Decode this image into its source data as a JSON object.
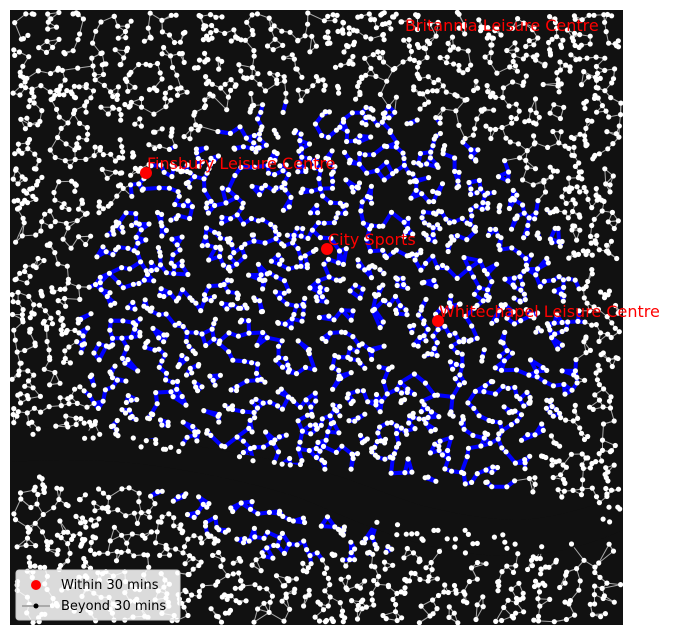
{
  "colors": {
    "background": "#111111",
    "street_edge": "#aaaaaa",
    "reachable_edge": "#0000ff",
    "node": "#ffffff",
    "poi_marker": "#ff0000",
    "poi_label": "#ff0000",
    "river": "#111111"
  },
  "pois": [
    {
      "name": "Britannia Leisure Centre",
      "show_marker": false
    },
    {
      "name": "Finsbury Leisure Centre",
      "show_marker": true
    },
    {
      "name": "City Sports",
      "show_marker": true
    },
    {
      "name": "Whitechapel Leisure Centre",
      "show_marker": true
    }
  ],
  "legend": {
    "items": [
      {
        "label": "Within 30 mins",
        "marker": "red-dot"
      },
      {
        "label": "Beyond 30 mins",
        "marker": "line-with-dot"
      }
    ]
  }
}
